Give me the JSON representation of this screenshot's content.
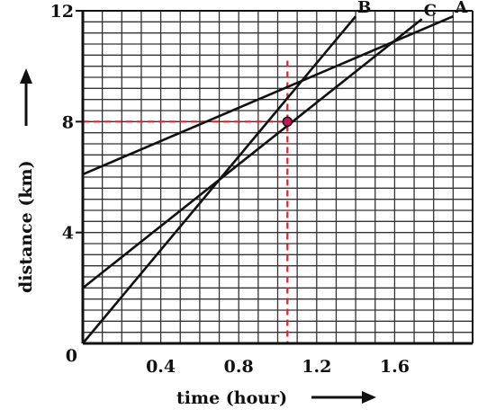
{
  "chart_data": {
    "type": "line",
    "xlabel": "time (hour)",
    "ylabel": "distance (km)",
    "xlim": [
      0,
      2.0
    ],
    "ylim": [
      0,
      12.0
    ],
    "x_ticks": [
      {
        "value": 0.4,
        "label": "0.4"
      },
      {
        "value": 0.8,
        "label": "0.8"
      },
      {
        "value": 1.2,
        "label": "1.2"
      },
      {
        "value": 1.6,
        "label": "1.6"
      }
    ],
    "y_ticks": [
      {
        "value": 0,
        "label": "0"
      },
      {
        "value": 4,
        "label": "4"
      },
      {
        "value": 8,
        "label": "8"
      },
      {
        "value": 12,
        "label": "12"
      }
    ],
    "grid": true,
    "grid_minor_x": 0.1,
    "grid_minor_y": 0.4,
    "series": [
      {
        "name": "A",
        "x": [
          0,
          1.9
        ],
        "y": [
          6.1,
          11.8
        ]
      },
      {
        "name": "B",
        "x": [
          0,
          1.4
        ],
        "y": [
          0.0,
          11.8
        ]
      },
      {
        "name": "C",
        "x": [
          0,
          1.74
        ],
        "y": [
          2.0,
          11.7
        ]
      }
    ],
    "highlight_point": {
      "x": 1.05,
      "y": 8.0
    },
    "reference_lines": [
      {
        "orientation": "horizontal",
        "value": 8.0,
        "from": 0,
        "to": 1.05
      },
      {
        "orientation": "vertical",
        "value": 1.05,
        "from": 0,
        "to": 10.2
      }
    ],
    "colors": {
      "line": "#111111",
      "grid": "#333333",
      "reference": "#e0202a",
      "point": "#c2185b"
    }
  }
}
